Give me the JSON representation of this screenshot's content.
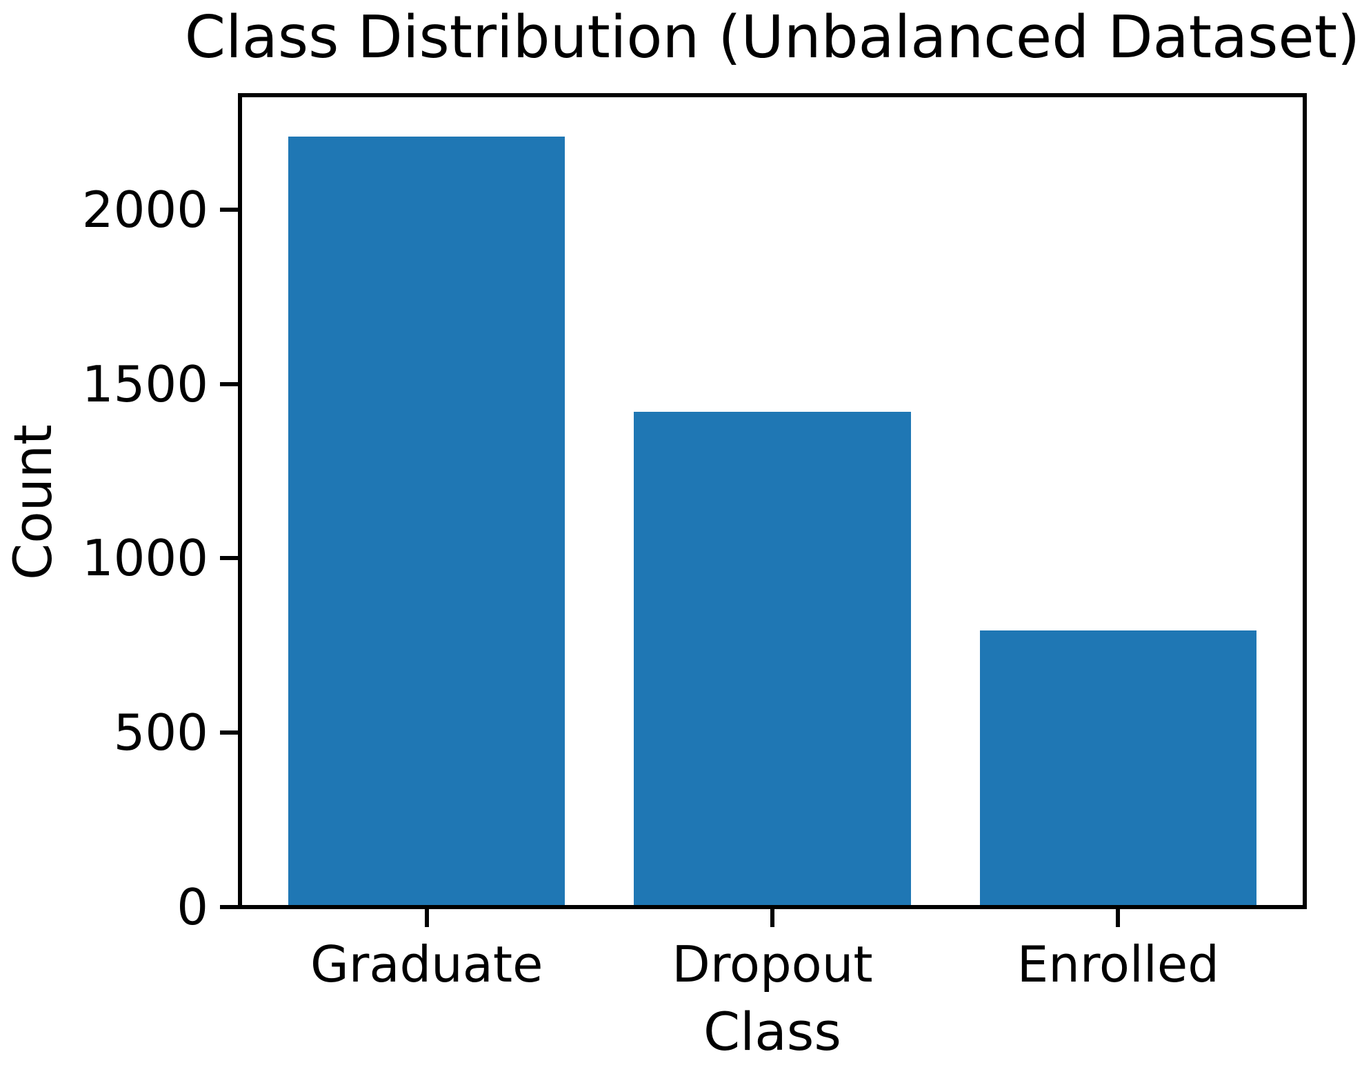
{
  "chart_data": {
    "type": "bar",
    "title": "Class Distribution (Unbalanced Dataset)",
    "xlabel": "Class",
    "ylabel": "Count",
    "categories": [
      "Graduate",
      "Dropout",
      "Enrolled"
    ],
    "values": [
      2209,
      1421,
      794
    ],
    "yticks": [
      "0",
      "500",
      "1000",
      "1500",
      "2000"
    ],
    "ytick_values": [
      0,
      500,
      1000,
      1500,
      2000
    ],
    "ylim": [
      0,
      2328
    ],
    "xlim": [
      -0.54,
      2.54
    ],
    "bar_width": 0.8,
    "bar_color": "#1f77b4",
    "axis_color": "#000000",
    "text_color": "#000000",
    "background_color": "#ffffff",
    "grid": false,
    "legend_position": "none"
  }
}
